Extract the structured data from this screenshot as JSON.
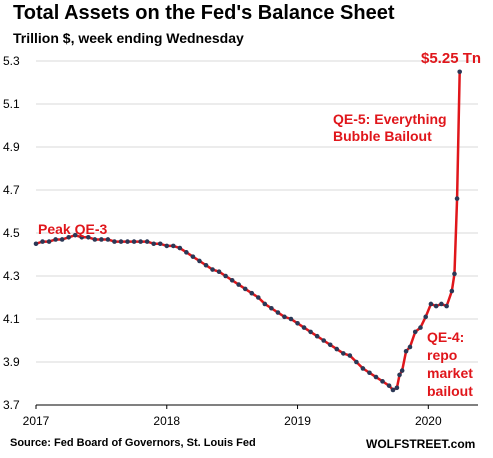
{
  "title": "Total Assets on the Fed's Balance Sheet",
  "subtitle": "Trillion $, week ending Wednesday",
  "source": "Source: Fed Board of Governors, St. Louis Fed",
  "watermark": "WOLFSTREET.com",
  "colors": {
    "line": "#e0161b",
    "marker": "#2b3856",
    "annotation": "#e0161b",
    "grid": "#d9d9d9"
  },
  "chart_data": {
    "type": "line",
    "title": "Total Assets on the Fed's Balance Sheet",
    "subtitle": "Trillion $, week ending Wednesday",
    "xlabel": "",
    "ylabel": "",
    "xlim": [
      2017.0,
      2020.38
    ],
    "ylim": [
      3.7,
      5.3
    ],
    "y_ticks": [
      3.7,
      3.9,
      4.1,
      4.3,
      4.5,
      4.7,
      4.9,
      5.1,
      5.3
    ],
    "y_tick_labels": [
      "3.7",
      "3.9",
      "4.1",
      "4.3",
      "4.5",
      "4.7",
      "4.9",
      "5.1",
      "5.3"
    ],
    "x_ticks": [
      2017,
      2018,
      2019,
      2020
    ],
    "x_tick_labels": [
      "2017",
      "2018",
      "2019",
      "2020"
    ],
    "grid": "horizontal",
    "series": [
      {
        "values_note": "",
        "points": [
          [
            2017.0,
            4.45
          ],
          [
            2017.05,
            4.46
          ],
          [
            2017.1,
            4.46
          ],
          [
            2017.15,
            4.47
          ],
          [
            2017.2,
            4.47
          ],
          [
            2017.25,
            4.48
          ],
          [
            2017.3,
            4.49
          ],
          [
            2017.35,
            4.48
          ],
          [
            2017.4,
            4.48
          ],
          [
            2017.45,
            4.47
          ],
          [
            2017.5,
            4.47
          ],
          [
            2017.55,
            4.47
          ],
          [
            2017.6,
            4.46
          ],
          [
            2017.65,
            4.46
          ],
          [
            2017.7,
            4.46
          ],
          [
            2017.75,
            4.46
          ],
          [
            2017.8,
            4.46
          ],
          [
            2017.85,
            4.46
          ],
          [
            2017.9,
            4.45
          ],
          [
            2017.95,
            4.45
          ],
          [
            2018.0,
            4.44
          ],
          [
            2018.05,
            4.44
          ],
          [
            2018.1,
            4.43
          ],
          [
            2018.15,
            4.41
          ],
          [
            2018.2,
            4.39
          ],
          [
            2018.25,
            4.37
          ],
          [
            2018.3,
            4.35
          ],
          [
            2018.35,
            4.33
          ],
          [
            2018.4,
            4.32
          ],
          [
            2018.45,
            4.3
          ],
          [
            2018.5,
            4.28
          ],
          [
            2018.55,
            4.26
          ],
          [
            2018.6,
            4.24
          ],
          [
            2018.65,
            4.22
          ],
          [
            2018.7,
            4.2
          ],
          [
            2018.75,
            4.17
          ],
          [
            2018.8,
            4.15
          ],
          [
            2018.85,
            4.13
          ],
          [
            2018.9,
            4.11
          ],
          [
            2018.95,
            4.1
          ],
          [
            2019.0,
            4.08
          ],
          [
            2019.05,
            4.06
          ],
          [
            2019.1,
            4.04
          ],
          [
            2019.15,
            4.02
          ],
          [
            2019.2,
            4.0
          ],
          [
            2019.25,
            3.98
          ],
          [
            2019.3,
            3.96
          ],
          [
            2019.35,
            3.94
          ],
          [
            2019.4,
            3.93
          ],
          [
            2019.45,
            3.9
          ],
          [
            2019.5,
            3.87
          ],
          [
            2019.55,
            3.85
          ],
          [
            2019.6,
            3.83
          ],
          [
            2019.65,
            3.81
          ],
          [
            2019.7,
            3.79
          ],
          [
            2019.73,
            3.77
          ],
          [
            2019.76,
            3.78
          ],
          [
            2019.78,
            3.84
          ],
          [
            2019.8,
            3.86
          ],
          [
            2019.83,
            3.95
          ],
          [
            2019.86,
            3.97
          ],
          [
            2019.9,
            4.04
          ],
          [
            2019.94,
            4.06
          ],
          [
            2019.98,
            4.11
          ],
          [
            2020.02,
            4.17
          ],
          [
            2020.06,
            4.16
          ],
          [
            2020.1,
            4.17
          ],
          [
            2020.14,
            4.16
          ],
          [
            2020.18,
            4.23
          ],
          [
            2020.2,
            4.31
          ],
          [
            2020.22,
            4.66
          ],
          [
            2020.24,
            5.25
          ]
        ]
      }
    ],
    "annotations": [
      {
        "text": "Peak QE-3"
      },
      {
        "text": "$5.25 Tn"
      },
      {
        "text": "QE-5: Everything"
      },
      {
        "text": "Bubble Bailout"
      },
      {
        "text": "QE-4:"
      },
      {
        "text": "repo"
      },
      {
        "text": "market"
      },
      {
        "text": "bailout"
      }
    ]
  }
}
